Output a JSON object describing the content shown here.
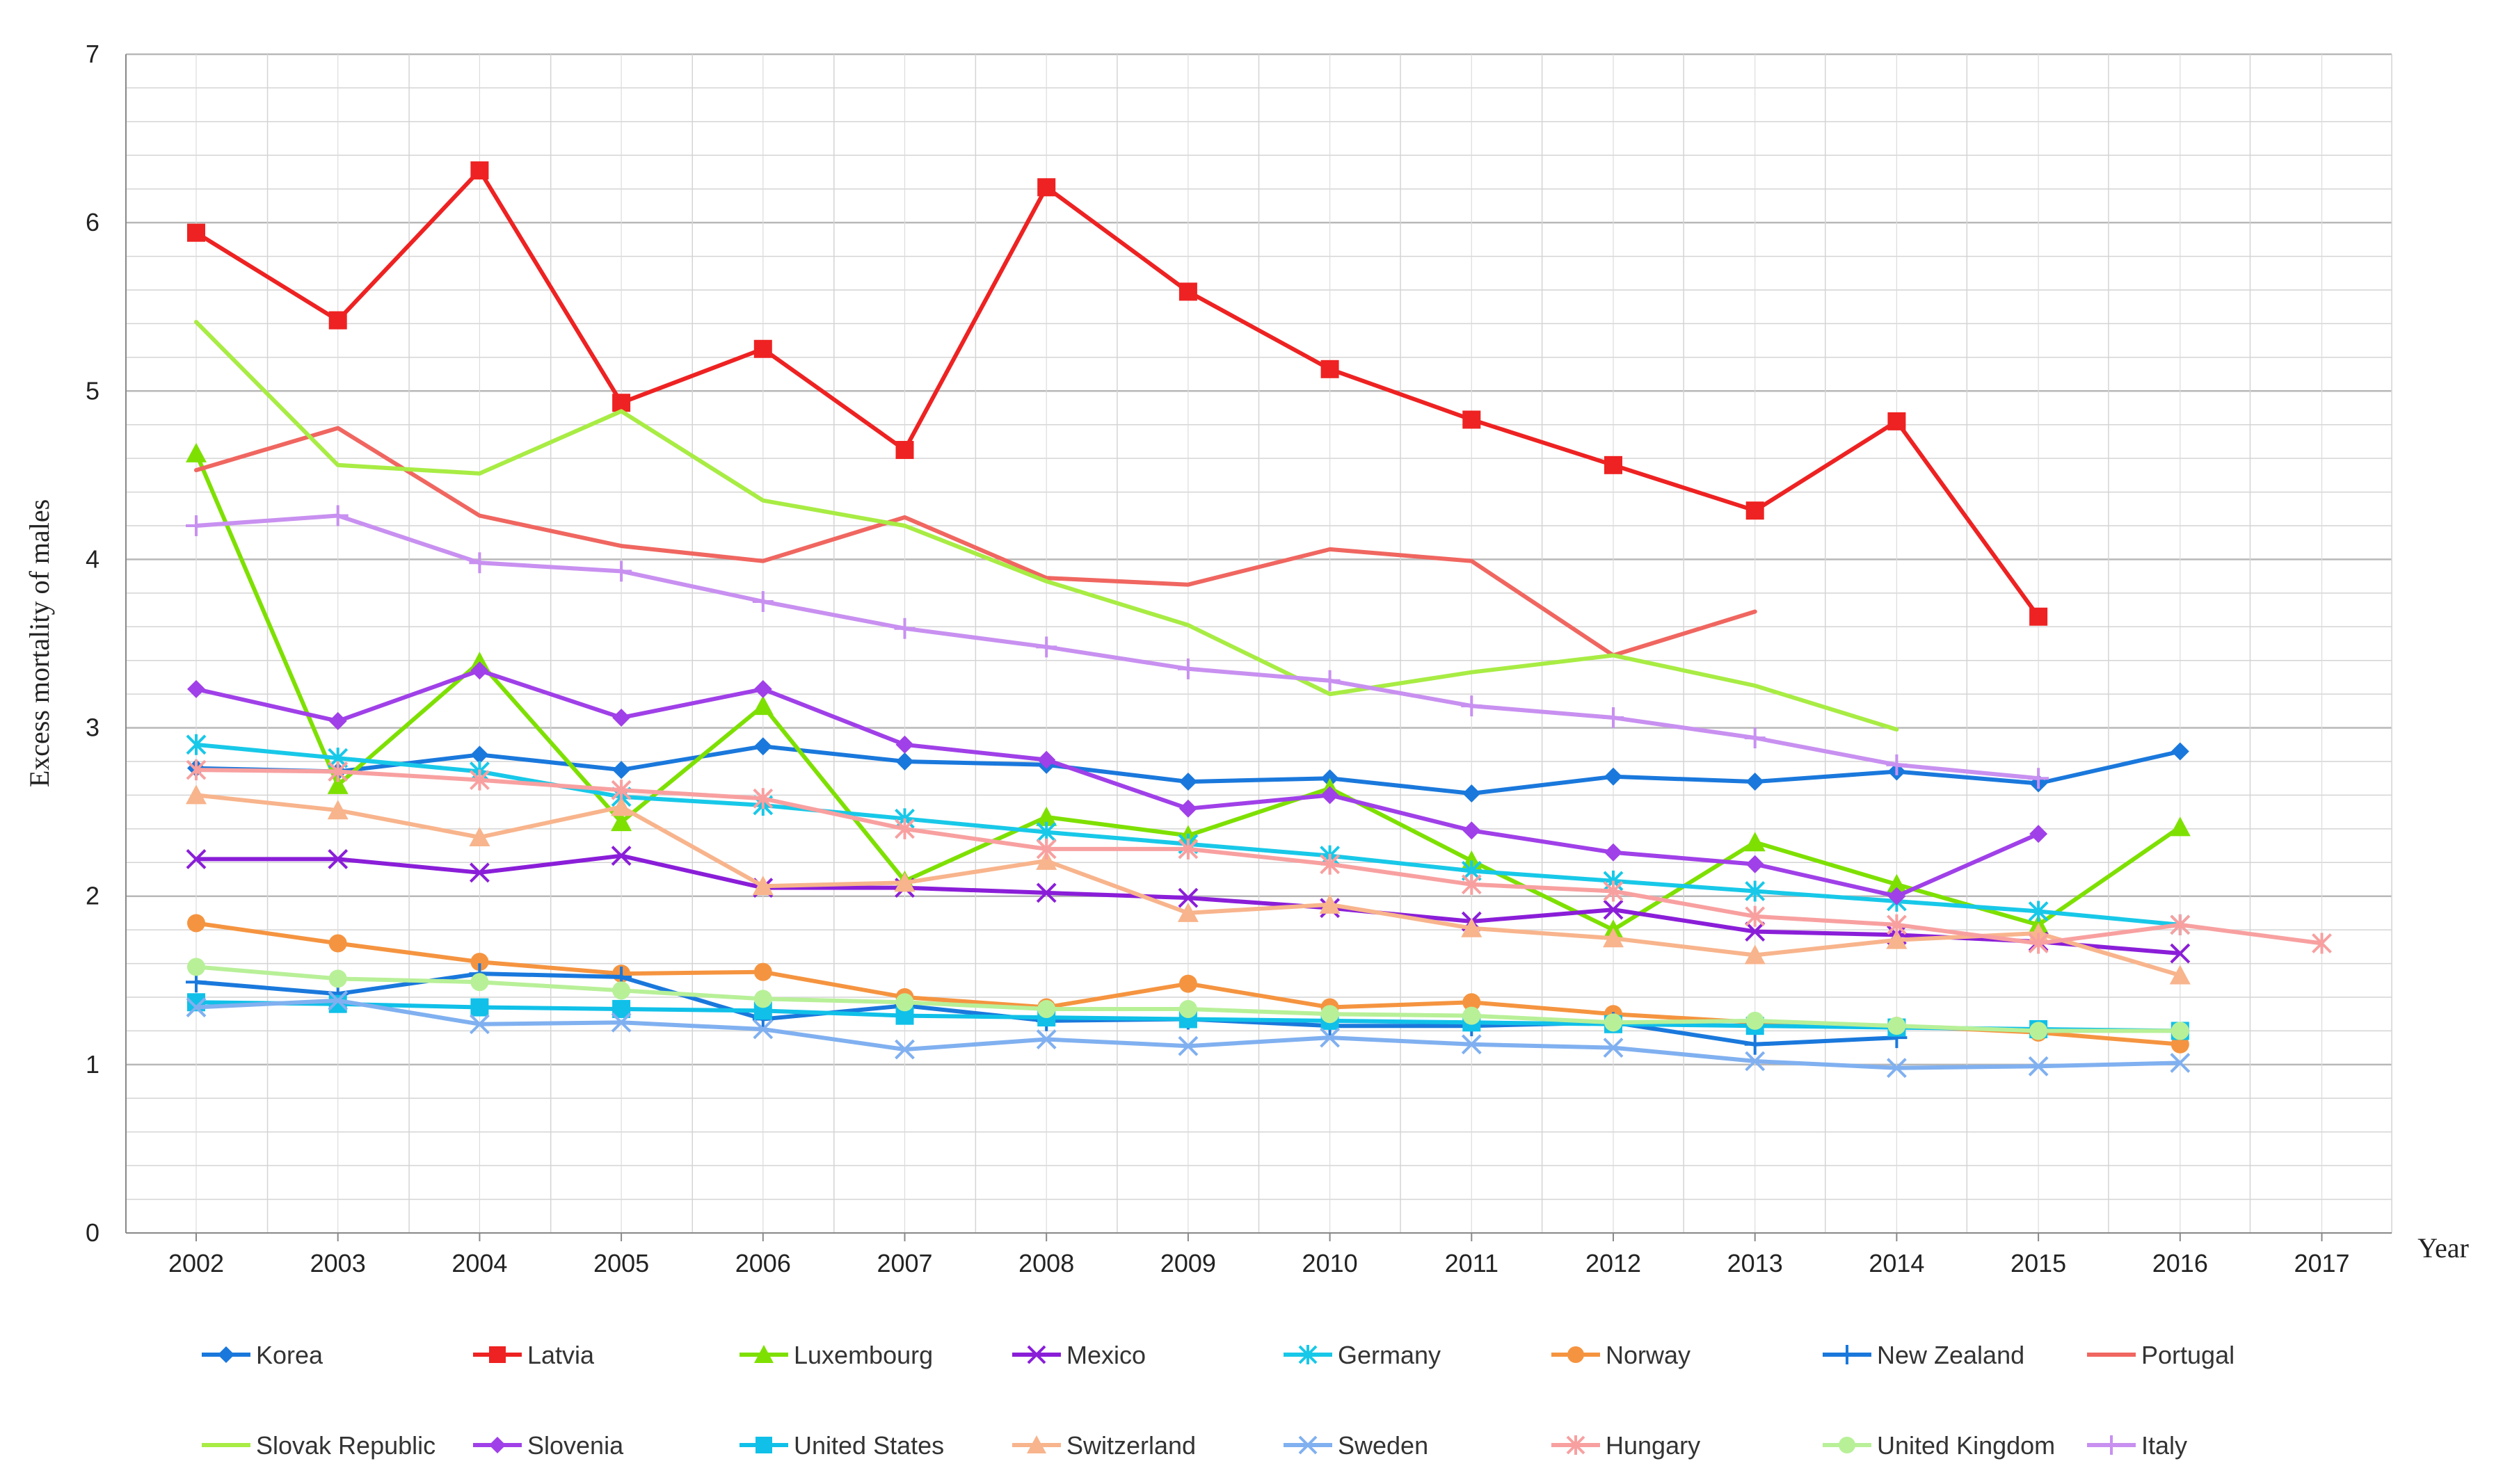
{
  "chart_data": {
    "type": "line",
    "title": "",
    "xlabel": "Year",
    "ylabel": "Excess mortality of males",
    "ylim": [
      0,
      7
    ],
    "yticks": [
      "0",
      "1",
      "2",
      "3",
      "4",
      "5",
      "6",
      "7"
    ],
    "categories": [
      "2002",
      "2003",
      "2004",
      "2005",
      "2006",
      "2007",
      "2008",
      "2009",
      "2010",
      "2011",
      "2012",
      "2013",
      "2014",
      "2015",
      "2016",
      "2017"
    ],
    "grid": true,
    "legend_position": "bottom",
    "series": [
      {
        "name": "Korea",
        "color": "#1a78dc",
        "marker": "diamond",
        "values": [
          2.76,
          2.74,
          2.84,
          2.75,
          2.89,
          2.8,
          2.78,
          2.68,
          2.7,
          2.61,
          2.71,
          2.68,
          2.74,
          2.67,
          2.86,
          null
        ]
      },
      {
        "name": "Latvia",
        "color": "#ee2222",
        "marker": "square",
        "values": [
          5.94,
          5.42,
          6.31,
          4.93,
          5.25,
          4.65,
          6.21,
          5.59,
          5.13,
          4.83,
          4.56,
          4.29,
          4.82,
          3.66,
          null,
          null
        ]
      },
      {
        "name": "Luxembourg",
        "color": "#7ee000",
        "marker": "triangle",
        "values": [
          4.63,
          2.66,
          3.39,
          2.44,
          3.13,
          2.09,
          2.47,
          2.36,
          2.64,
          2.21,
          1.8,
          2.32,
          2.07,
          1.83,
          2.41,
          null
        ]
      },
      {
        "name": "Mexico",
        "color": "#8a1ed8",
        "marker": "x",
        "values": [
          2.22,
          2.22,
          2.14,
          2.24,
          2.05,
          2.05,
          2.02,
          1.99,
          1.93,
          1.85,
          1.92,
          1.79,
          1.77,
          1.73,
          1.66,
          null
        ]
      },
      {
        "name": "Germany",
        "color": "#18c8e8",
        "marker": "star",
        "values": [
          2.9,
          2.82,
          2.74,
          2.59,
          2.54,
          2.46,
          2.38,
          2.31,
          2.24,
          2.15,
          2.09,
          2.03,
          1.97,
          1.91,
          1.83,
          null
        ]
      },
      {
        "name": "Norway",
        "color": "#f59440",
        "marker": "circle",
        "values": [
          1.84,
          1.72,
          1.61,
          1.54,
          1.55,
          1.4,
          1.34,
          1.48,
          1.34,
          1.37,
          1.3,
          1.25,
          1.23,
          1.19,
          1.12,
          null
        ]
      },
      {
        "name": "New Zealand",
        "color": "#1a78dc",
        "marker": "plus",
        "values": [
          1.49,
          1.42,
          1.54,
          1.52,
          1.27,
          1.35,
          1.26,
          1.27,
          1.23,
          1.23,
          1.25,
          1.12,
          1.16,
          null,
          null,
          null
        ]
      },
      {
        "name": "Portugal",
        "color": "#f06660",
        "marker": "none",
        "values": [
          4.53,
          4.78,
          4.26,
          4.08,
          3.99,
          4.25,
          3.89,
          3.85,
          4.06,
          3.99,
          3.43,
          3.69,
          null,
          null,
          null,
          null
        ]
      },
      {
        "name": "Slovak Republic",
        "color": "#a8ec44",
        "marker": "none",
        "values": [
          5.41,
          4.56,
          4.51,
          4.88,
          4.35,
          4.2,
          3.87,
          3.61,
          3.2,
          3.33,
          3.43,
          3.25,
          2.99,
          null,
          null,
          null
        ]
      },
      {
        "name": "Slovenia",
        "color": "#a040e8",
        "marker": "diamond",
        "values": [
          3.23,
          3.04,
          3.34,
          3.06,
          3.23,
          2.9,
          2.81,
          2.52,
          2.6,
          2.39,
          2.26,
          2.19,
          2.0,
          2.37,
          null,
          null
        ]
      },
      {
        "name": "United States",
        "color": "#10c0e8",
        "marker": "square",
        "values": [
          1.37,
          1.36,
          1.34,
          1.33,
          1.32,
          1.29,
          1.28,
          1.27,
          1.26,
          1.25,
          1.24,
          1.23,
          1.22,
          1.21,
          1.2,
          null
        ]
      },
      {
        "name": "Switzerland",
        "color": "#f8b48c",
        "marker": "triangle",
        "values": [
          2.6,
          2.51,
          2.35,
          2.53,
          2.06,
          2.08,
          2.21,
          1.9,
          1.95,
          1.81,
          1.75,
          1.65,
          1.74,
          1.78,
          1.53,
          null
        ]
      },
      {
        "name": "Sweden",
        "color": "#80b0f0",
        "marker": "x",
        "values": [
          1.34,
          1.38,
          1.24,
          1.25,
          1.21,
          1.09,
          1.15,
          1.11,
          1.16,
          1.12,
          1.1,
          1.02,
          0.98,
          0.99,
          1.01,
          null
        ]
      },
      {
        "name": "Hungary",
        "color": "#f8a0a0",
        "marker": "star",
        "values": [
          2.75,
          2.74,
          2.69,
          2.63,
          2.58,
          2.4,
          2.28,
          2.28,
          2.19,
          2.07,
          2.03,
          1.88,
          1.83,
          1.72,
          1.83,
          1.72
        ]
      },
      {
        "name": "United Kingdom",
        "color": "#b8f098",
        "marker": "circle",
        "values": [
          1.58,
          1.51,
          1.49,
          1.44,
          1.39,
          1.37,
          1.33,
          1.33,
          1.3,
          1.29,
          1.25,
          1.26,
          1.23,
          1.2,
          1.2,
          null
        ]
      },
      {
        "name": "Italy",
        "color": "#c890f0",
        "marker": "plus",
        "values": [
          4.2,
          4.26,
          3.98,
          3.93,
          3.75,
          3.59,
          3.48,
          3.35,
          3.28,
          3.13,
          3.06,
          2.94,
          2.78,
          2.7,
          null,
          null
        ]
      }
    ]
  }
}
